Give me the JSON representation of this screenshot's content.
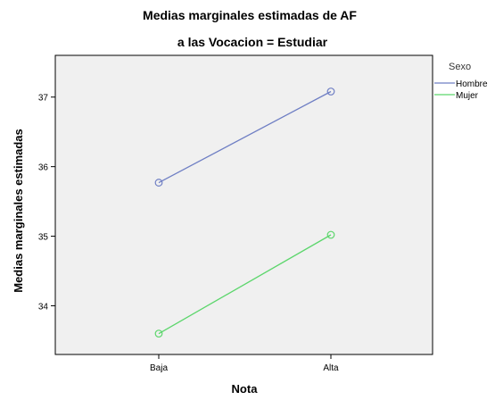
{
  "chart_data": {
    "type": "line",
    "title": "Medias marginales estimadas de AF",
    "subtitle": "a las Vocacion = Estudiar",
    "xlabel": "Nota",
    "ylabel": "Medias marginales estimadas",
    "categories": [
      "Baja",
      "Alta"
    ],
    "ylim": [
      33.3,
      37.6
    ],
    "yticks": [
      34,
      35,
      36,
      37
    ],
    "legend_title": "Sexo",
    "legend_position": "right",
    "grid": false,
    "plot_background": "#f0f0f0",
    "series": [
      {
        "name": "Hombre",
        "values": [
          35.77,
          37.08
        ],
        "color": "#6f7fc4"
      },
      {
        "name": "Mujer",
        "values": [
          33.6,
          35.02
        ],
        "color": "#5cd66c"
      }
    ]
  }
}
